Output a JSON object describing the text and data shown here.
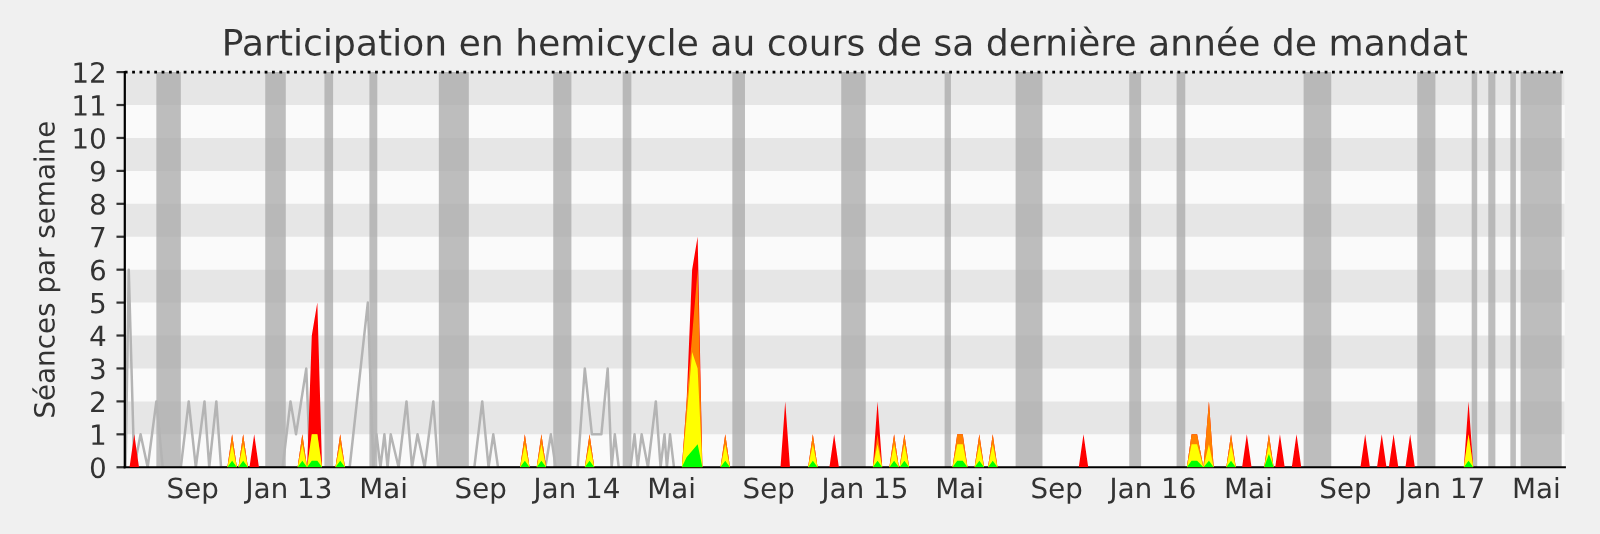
{
  "chart_data": {
    "type": "area",
    "title": "Participation en hemicycle au cours de sa dernière année de mandat",
    "ylabel": "Séances par semaine",
    "xlim": [
      "2012-06-07",
      "2017-06-06"
    ],
    "ylim": [
      0,
      12
    ],
    "yticks": [
      0,
      1,
      2,
      3,
      4,
      5,
      6,
      7,
      8,
      9,
      10,
      11,
      12
    ],
    "xticks": [
      {
        "value": "2012-09-01",
        "label": "Sep"
      },
      {
        "value": "2013-01-01",
        "label": "Jan 13"
      },
      {
        "value": "2013-05-01",
        "label": "Mai"
      },
      {
        "value": "2013-09-01",
        "label": "Sep"
      },
      {
        "value": "2014-01-01",
        "label": "Jan 14"
      },
      {
        "value": "2014-05-01",
        "label": "Mai"
      },
      {
        "value": "2014-09-01",
        "label": "Sep"
      },
      {
        "value": "2015-01-01",
        "label": "Jan 15"
      },
      {
        "value": "2015-05-01",
        "label": "Mai"
      },
      {
        "value": "2015-09-01",
        "label": "Sep"
      },
      {
        "value": "2016-01-01",
        "label": "Jan 16"
      },
      {
        "value": "2016-05-01",
        "label": "Mai"
      },
      {
        "value": "2016-09-01",
        "label": "Sep"
      },
      {
        "value": "2017-01-01",
        "label": "Jan 17"
      },
      {
        "value": "2017-05-01",
        "label": "Mai"
      }
    ],
    "grid": false,
    "legend": false,
    "x": [
      "2012-06-13",
      "2012-06-19",
      "2012-06-25",
      "2012-10-15",
      "2012-10-21",
      "2012-10-27",
      "2012-10-29",
      "2012-11-04",
      "2012-11-10",
      "2012-11-12",
      "2012-11-18",
      "2012-11-24",
      "2013-01-12",
      "2013-01-18",
      "2013-01-24",
      "2013-01-30",
      "2013-02-06",
      "2013-02-12",
      "2013-03-01",
      "2013-03-07",
      "2013-03-13",
      "2013-10-21",
      "2013-10-27",
      "2013-11-02",
      "2013-11-11",
      "2013-11-17",
      "2013-11-23",
      "2014-01-11",
      "2014-01-17",
      "2014-01-23",
      "2014-05-14",
      "2014-05-20",
      "2014-05-27",
      "2014-06-03",
      "2014-06-09",
      "2014-07-02",
      "2014-07-08",
      "2014-07-14",
      "2014-09-16",
      "2014-09-22",
      "2014-09-28",
      "2014-10-21",
      "2014-10-27",
      "2014-11-02",
      "2014-11-17",
      "2014-11-23",
      "2014-11-29",
      "2015-01-11",
      "2015-01-17",
      "2015-01-23",
      "2015-02-01",
      "2015-02-07",
      "2015-02-13",
      "2015-02-14",
      "2015-02-20",
      "2015-02-26",
      "2015-04-22",
      "2015-04-28",
      "2015-05-05",
      "2015-05-11",
      "2015-05-20",
      "2015-05-26",
      "2015-06-01",
      "2015-06-06",
      "2015-06-12",
      "2015-06-18",
      "2015-09-29",
      "2015-10-05",
      "2015-10-11",
      "2016-02-13",
      "2016-02-19",
      "2016-02-26",
      "2016-03-05",
      "2016-03-12",
      "2016-03-18",
      "2016-04-03",
      "2016-04-09",
      "2016-04-15",
      "2016-04-23",
      "2016-04-29",
      "2016-05-05",
      "2016-05-21",
      "2016-05-27",
      "2016-06-02",
      "2016-06-04",
      "2016-06-10",
      "2016-06-16",
      "2016-06-25",
      "2016-07-01",
      "2016-07-07",
      "2016-09-20",
      "2016-09-26",
      "2016-10-02",
      "2016-10-11",
      "2016-10-17",
      "2016-10-23",
      "2016-10-26",
      "2016-11-01",
      "2016-11-07",
      "2016-11-16",
      "2016-11-22",
      "2016-11-28",
      "2017-01-29",
      "2017-02-04",
      "2017-02-10"
    ],
    "series": [
      {
        "type": "line",
        "color": "#b4b4b4",
        "x": [
          "2012-06-08",
          "2012-06-12",
          "2012-06-19",
          "2012-06-27",
          "2012-07-06",
          "2012-07-17",
          "2012-07-25",
          "2012-08-17",
          "2012-08-27",
          "2012-09-05",
          "2012-09-16",
          "2012-09-22",
          "2012-10-01",
          "2012-10-07",
          "2012-12-24",
          "2013-01-03",
          "2013-01-10",
          "2013-01-23",
          "2013-01-28",
          "2013-03-19",
          "2013-04-11",
          "2013-04-18",
          "2013-04-22",
          "2013-04-27",
          "2013-05-02",
          "2013-05-06",
          "2013-05-10",
          "2013-05-20",
          "2013-05-30",
          "2013-06-06",
          "2013-06-13",
          "2013-06-22",
          "2013-07-03",
          "2013-07-09",
          "2013-08-24",
          "2013-09-03",
          "2013-09-11",
          "2013-09-17",
          "2013-09-23",
          "2013-11-22",
          "2013-11-29",
          "2013-12-05",
          "2014-01-02",
          "2014-01-11",
          "2014-01-20",
          "2014-02-01",
          "2014-02-09",
          "2014-02-14",
          "2014-02-18",
          "2014-02-23",
          "2014-03-10",
          "2014-03-15",
          "2014-03-19",
          "2014-03-24",
          "2014-04-01",
          "2014-04-11",
          "2014-04-17",
          "2014-04-22",
          "2014-04-25",
          "2014-04-29",
          "2014-05-04"
        ],
        "values": [
          0,
          6,
          0,
          1,
          0,
          2,
          0,
          0,
          2,
          0,
          2,
          0,
          2,
          0,
          0,
          2,
          1,
          3,
          0,
          0,
          5,
          0,
          1,
          0,
          1,
          0,
          1,
          0,
          2,
          0,
          1,
          0,
          2,
          0,
          0,
          2,
          0,
          1,
          0,
          0,
          1,
          0,
          0,
          3,
          1,
          1,
          3,
          0,
          1,
          0,
          0,
          1,
          0,
          1,
          0,
          2,
          0,
          1,
          0,
          1,
          0
        ]
      },
      {
        "color": "#ff0000",
        "values": [
          0,
          1,
          0,
          0,
          1,
          0,
          0,
          1,
          0,
          0,
          1,
          0,
          0,
          1,
          0,
          4,
          5,
          0,
          0,
          1,
          0,
          0,
          1,
          0,
          0,
          1,
          0,
          0,
          1,
          0,
          0,
          2,
          6,
          7,
          0,
          0,
          1,
          0,
          0,
          2,
          0,
          0,
          1,
          0,
          0,
          1,
          0,
          0,
          2,
          0,
          0,
          1,
          0,
          0,
          1,
          0,
          0,
          1,
          1,
          0,
          0,
          1,
          0,
          0,
          1,
          0,
          0,
          1,
          0,
          0,
          1,
          1,
          0,
          2,
          0,
          0,
          1,
          0,
          0,
          1,
          0,
          0,
          1,
          0,
          0,
          1,
          0,
          0,
          1,
          0,
          0,
          1,
          0,
          0,
          1,
          0,
          0,
          1,
          0,
          0,
          1,
          0,
          0,
          2,
          0
        ]
      },
      {
        "color": "#ff8000",
        "values": [
          0,
          0,
          0,
          0,
          1,
          0,
          0,
          1,
          0,
          0,
          0,
          0,
          0,
          1,
          0,
          1,
          1,
          0,
          0,
          1,
          0,
          0,
          1,
          0,
          0,
          1,
          0,
          0,
          1,
          0,
          0,
          2,
          4,
          6,
          0,
          0,
          1,
          0,
          0,
          0,
          0,
          0,
          1,
          0,
          0,
          0,
          0,
          0,
          1,
          0,
          0,
          1,
          0,
          0,
          1,
          0,
          0,
          1,
          1,
          0,
          0,
          1,
          0,
          0,
          1,
          0,
          0,
          0,
          0,
          0,
          1,
          1,
          0,
          2,
          0,
          0,
          1,
          0,
          0,
          0,
          0,
          0,
          1,
          0,
          0,
          0,
          0,
          0,
          0,
          0,
          0,
          0,
          0,
          0,
          0,
          0,
          0,
          0,
          0,
          0,
          0,
          0,
          0,
          1,
          0
        ]
      },
      {
        "color": "#ffff00",
        "values": [
          0,
          0,
          0,
          0,
          0.7,
          0,
          0,
          0.7,
          0,
          0,
          0,
          0,
          0,
          0.7,
          0,
          1,
          1,
          0,
          0,
          0.7,
          0,
          0,
          0.7,
          0,
          0,
          0.7,
          0,
          0,
          0.7,
          0,
          0,
          1.5,
          3.5,
          3,
          0,
          0,
          0.7,
          0,
          0,
          0,
          0,
          0,
          0.7,
          0,
          0,
          0,
          0,
          0,
          0.7,
          0,
          0,
          0.7,
          0,
          0,
          0.7,
          0,
          0,
          0.7,
          0.7,
          0,
          0,
          0.7,
          0,
          0,
          0.7,
          0,
          0,
          0,
          0,
          0,
          0.7,
          0.7,
          0,
          0.7,
          0,
          0,
          0.7,
          0,
          0,
          0,
          0,
          0,
          0.7,
          0,
          0,
          0,
          0,
          0,
          0,
          0,
          0,
          0,
          0,
          0,
          0,
          0,
          0,
          0,
          0,
          0,
          0,
          0,
          0,
          1,
          0
        ]
      },
      {
        "color": "#00ff00",
        "values": [
          0,
          0,
          0,
          0,
          0.2,
          0,
          0,
          0.2,
          0,
          0,
          0,
          0,
          0,
          0.2,
          0,
          0.2,
          0.2,
          0,
          0,
          0.2,
          0,
          0,
          0.2,
          0,
          0,
          0.2,
          0,
          0,
          0.2,
          0,
          0,
          0.3,
          0.5,
          0.7,
          0,
          0,
          0.2,
          0,
          0,
          0,
          0,
          0,
          0.2,
          0,
          0,
          0,
          0,
          0,
          0.2,
          0,
          0,
          0.2,
          0,
          0,
          0.2,
          0,
          0,
          0.2,
          0.2,
          0,
          0,
          0.2,
          0,
          0,
          0.2,
          0,
          0,
          0,
          0,
          0,
          0.2,
          0.2,
          0,
          0.2,
          0,
          0,
          0.2,
          0,
          0,
          0,
          0,
          0,
          0.4,
          0,
          0,
          0,
          0,
          0,
          0,
          0,
          0,
          0,
          0,
          0,
          0,
          0,
          0,
          0,
          0,
          0,
          0,
          0,
          0,
          0.2,
          0
        ]
      }
    ],
    "ref_lines": [
      {
        "axis": "y",
        "value": 12,
        "color": "#000000",
        "line_style": "dotted"
      }
    ],
    "bands": [
      {
        "axis": "y",
        "from": 1,
        "to": 2,
        "color": "#e6e6e6"
      },
      {
        "axis": "y",
        "from": 3,
        "to": 4,
        "color": "#e6e6e6"
      },
      {
        "axis": "y",
        "from": 5,
        "to": 6,
        "color": "#e6e6e6"
      },
      {
        "axis": "y",
        "from": 7,
        "to": 8,
        "color": "#e6e6e6"
      },
      {
        "axis": "y",
        "from": 9,
        "to": 10,
        "color": "#e6e6e6"
      },
      {
        "axis": "y",
        "from": 11,
        "to": 12,
        "color": "#e6e6e6"
      },
      {
        "axis": "x",
        "from": "2012-07-17",
        "to": "2012-08-17",
        "color": "#a8a8a8"
      },
      {
        "axis": "x",
        "from": "2012-12-02",
        "to": "2012-12-28",
        "color": "#a8a8a8"
      },
      {
        "axis": "x",
        "from": "2013-02-15",
        "to": "2013-02-26",
        "color": "#a8a8a8"
      },
      {
        "axis": "x",
        "from": "2013-04-13",
        "to": "2013-04-23",
        "color": "#a8a8a8"
      },
      {
        "axis": "x",
        "from": "2013-07-10",
        "to": "2013-08-17",
        "color": "#a8a8a8"
      },
      {
        "axis": "x",
        "from": "2013-12-02",
        "to": "2013-12-25",
        "color": "#a8a8a8"
      },
      {
        "axis": "x",
        "from": "2014-02-28",
        "to": "2014-03-11",
        "color": "#a8a8a8"
      },
      {
        "axis": "x",
        "from": "2014-07-17",
        "to": "2014-08-02",
        "color": "#a8a8a8"
      },
      {
        "axis": "x",
        "from": "2014-12-02",
        "to": "2015-01-02",
        "color": "#a8a8a8"
      },
      {
        "axis": "x",
        "from": "2015-04-12",
        "to": "2015-04-20",
        "color": "#a8a8a8"
      },
      {
        "axis": "x",
        "from": "2015-07-11",
        "to": "2015-08-14",
        "color": "#a8a8a8"
      },
      {
        "axis": "x",
        "from": "2015-12-02",
        "to": "2015-12-17",
        "color": "#a8a8a8"
      },
      {
        "axis": "x",
        "from": "2016-01-31",
        "to": "2016-02-11",
        "color": "#a8a8a8"
      },
      {
        "axis": "x",
        "from": "2016-07-10",
        "to": "2016-08-14",
        "color": "#a8a8a8"
      },
      {
        "axis": "x",
        "from": "2016-12-01",
        "to": "2016-12-24",
        "color": "#a8a8a8"
      },
      {
        "axis": "x",
        "from": "2017-02-08",
        "to": "2017-02-15",
        "color": "#a8a8a8"
      },
      {
        "axis": "x",
        "from": "2017-03-01",
        "to": "2017-03-10",
        "color": "#a8a8a8"
      },
      {
        "axis": "x",
        "from": "2017-03-29",
        "to": "2017-04-05",
        "color": "#a8a8a8"
      },
      {
        "axis": "x",
        "from": "2017-04-11",
        "to": "2017-06-02",
        "color": "#a8a8a8"
      }
    ]
  }
}
